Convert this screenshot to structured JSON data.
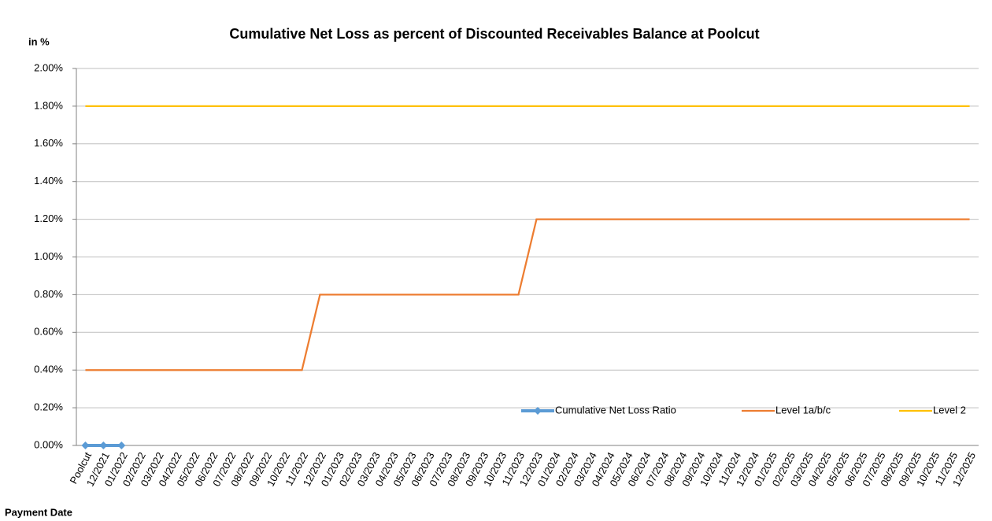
{
  "chart_data": {
    "type": "line",
    "title": "Cumulative Net Loss as percent of Discounted Receivables Balance at Poolcut",
    "y_label": "in %",
    "x_label": "Payment Date",
    "categories": [
      "Poolcut",
      "12/2021",
      "01/2022",
      "02/2022",
      "03/2022",
      "04/2022",
      "05/2022",
      "06/2022",
      "07/2022",
      "08/2022",
      "09/2022",
      "10/2022",
      "11/2022",
      "12/2022",
      "01/2023",
      "02/2023",
      "03/2023",
      "04/2023",
      "05/2023",
      "06/2023",
      "07/2023",
      "08/2023",
      "09/2023",
      "10/2023",
      "11/2023",
      "12/2023",
      "01/2024",
      "02/2024",
      "03/2024",
      "04/2024",
      "05/2024",
      "06/2024",
      "07/2024",
      "08/2024",
      "09/2024",
      "10/2024",
      "11/2024",
      "12/2024",
      "01/2025",
      "02/2025",
      "03/2025",
      "04/2025",
      "05/2025",
      "06/2025",
      "07/2025",
      "08/2025",
      "09/2025",
      "10/2025",
      "11/2025",
      "12/2025"
    ],
    "series": [
      {
        "name": "Cumulative Net Loss Ratio",
        "color": "#5b9bd5",
        "marker": "diamond",
        "values": [
          0,
          0,
          0,
          null,
          null,
          null,
          null,
          null,
          null,
          null,
          null,
          null,
          null,
          null,
          null,
          null,
          null,
          null,
          null,
          null,
          null,
          null,
          null,
          null,
          null,
          null,
          null,
          null,
          null,
          null,
          null,
          null,
          null,
          null,
          null,
          null,
          null,
          null,
          null,
          null,
          null,
          null,
          null,
          null,
          null,
          null,
          null,
          null,
          null,
          null
        ]
      },
      {
        "name": "Level 1a/b/c",
        "color": "#ed7d31",
        "values": [
          0.4,
          0.4,
          0.4,
          0.4,
          0.4,
          0.4,
          0.4,
          0.4,
          0.4,
          0.4,
          0.4,
          0.4,
          0.4,
          0.8,
          0.8,
          0.8,
          0.8,
          0.8,
          0.8,
          0.8,
          0.8,
          0.8,
          0.8,
          0.8,
          0.8,
          1.2,
          1.2,
          1.2,
          1.2,
          1.2,
          1.2,
          1.2,
          1.2,
          1.2,
          1.2,
          1.2,
          1.2,
          1.2,
          1.2,
          1.2,
          1.2,
          1.2,
          1.2,
          1.2,
          1.2,
          1.2,
          1.2,
          1.2,
          1.2,
          1.2
        ]
      },
      {
        "name": "Level 2",
        "color": "#ffc000",
        "values": [
          1.8,
          1.8,
          1.8,
          1.8,
          1.8,
          1.8,
          1.8,
          1.8,
          1.8,
          1.8,
          1.8,
          1.8,
          1.8,
          1.8,
          1.8,
          1.8,
          1.8,
          1.8,
          1.8,
          1.8,
          1.8,
          1.8,
          1.8,
          1.8,
          1.8,
          1.8,
          1.8,
          1.8,
          1.8,
          1.8,
          1.8,
          1.8,
          1.8,
          1.8,
          1.8,
          1.8,
          1.8,
          1.8,
          1.8,
          1.8,
          1.8,
          1.8,
          1.8,
          1.8,
          1.8,
          1.8,
          1.8,
          1.8,
          1.8,
          1.8
        ]
      }
    ],
    "ylim": [
      0,
      2
    ],
    "yticks": [
      {
        "value": 0,
        "label": "0.00%"
      },
      {
        "value": 0.2,
        "label": "0.20%"
      },
      {
        "value": 0.4,
        "label": "0.40%"
      },
      {
        "value": 0.6,
        "label": "0.60%"
      },
      {
        "value": 0.8,
        "label": "0.80%"
      },
      {
        "value": 1,
        "label": "1.00%"
      },
      {
        "value": 1.2,
        "label": "1.20%"
      },
      {
        "value": 1.4,
        "label": "1.40%"
      },
      {
        "value": 1.6,
        "label": "1.60%"
      },
      {
        "value": 1.8,
        "label": "1.80%"
      },
      {
        "value": 2,
        "label": "2.00%"
      }
    ],
    "grid": true,
    "legend": "bottom-right"
  }
}
